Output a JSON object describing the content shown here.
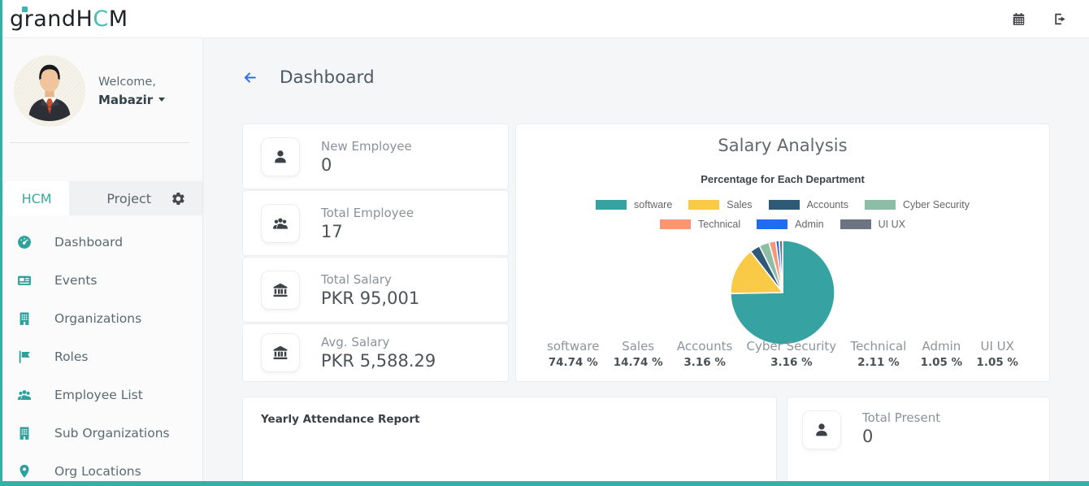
{
  "brand": {
    "logo_part1": "grandH",
    "logo_accent": "C",
    "logo_part2": "M"
  },
  "header": {
    "actions": [
      "calendar-icon",
      "sign-out-icon"
    ]
  },
  "sidebar": {
    "welcome_label": "Welcome,",
    "username": "Mabazir",
    "tabs": [
      {
        "label": "HCM",
        "active": true
      },
      {
        "label": "Project",
        "active": false
      }
    ],
    "menu": [
      {
        "label": "Dashboard",
        "icon": "gauge-icon"
      },
      {
        "label": "Events",
        "icon": "newspaper-icon"
      },
      {
        "label": "Organizations",
        "icon": "building-icon"
      },
      {
        "label": "Roles",
        "icon": "flag-icon"
      },
      {
        "label": "Employee List",
        "icon": "users-icon"
      },
      {
        "label": "Sub Organizations",
        "icon": "building-icon"
      },
      {
        "label": "Org Locations",
        "icon": "map-marker-icon"
      }
    ]
  },
  "main": {
    "page_title": "Dashboard",
    "stats": [
      {
        "label": "New Employee",
        "value": "0",
        "icon": "user-icon"
      },
      {
        "label": "Total Employee",
        "value": "17",
        "icon": "users-icon"
      },
      {
        "label": "Total Salary",
        "value": "PKR 95,001",
        "icon": "bank-icon"
      },
      {
        "label": "Avg. Salary",
        "value": "PKR 5,588.29",
        "icon": "bank-icon"
      }
    ],
    "attendance_title": "Yearly Attendance Report",
    "present_card": {
      "label": "Total Present",
      "value": "0",
      "icon": "user-icon"
    }
  },
  "chart_data": {
    "type": "pie",
    "title": "Salary Analysis",
    "subtitle": "Percentage for Each Department",
    "categories": [
      "software",
      "Sales",
      "Accounts",
      "Cyber Security",
      "Technical",
      "Admin",
      "UI UX"
    ],
    "values": [
      74.74,
      14.74,
      3.16,
      3.16,
      2.11,
      1.05,
      1.05
    ],
    "value_labels": [
      "74.74 %",
      "14.74 %",
      "3.16 %",
      "3.16 %",
      "2.11 %",
      "1.05 %",
      "1.05 %"
    ],
    "unit": "%",
    "colors": [
      "#36a2a2",
      "#f9ca45",
      "#2e5a78",
      "#8cbda6",
      "#fa9678",
      "#1f6bf2",
      "#6b7480"
    ],
    "legend_position": "top",
    "start_angle": 0,
    "direction": "clockwise"
  },
  "theme": {
    "teal": "#2da19d",
    "edge_teal": "#34b0a9",
    "accent_blue": "#2e6bf2",
    "card_border": "#ececec"
  }
}
